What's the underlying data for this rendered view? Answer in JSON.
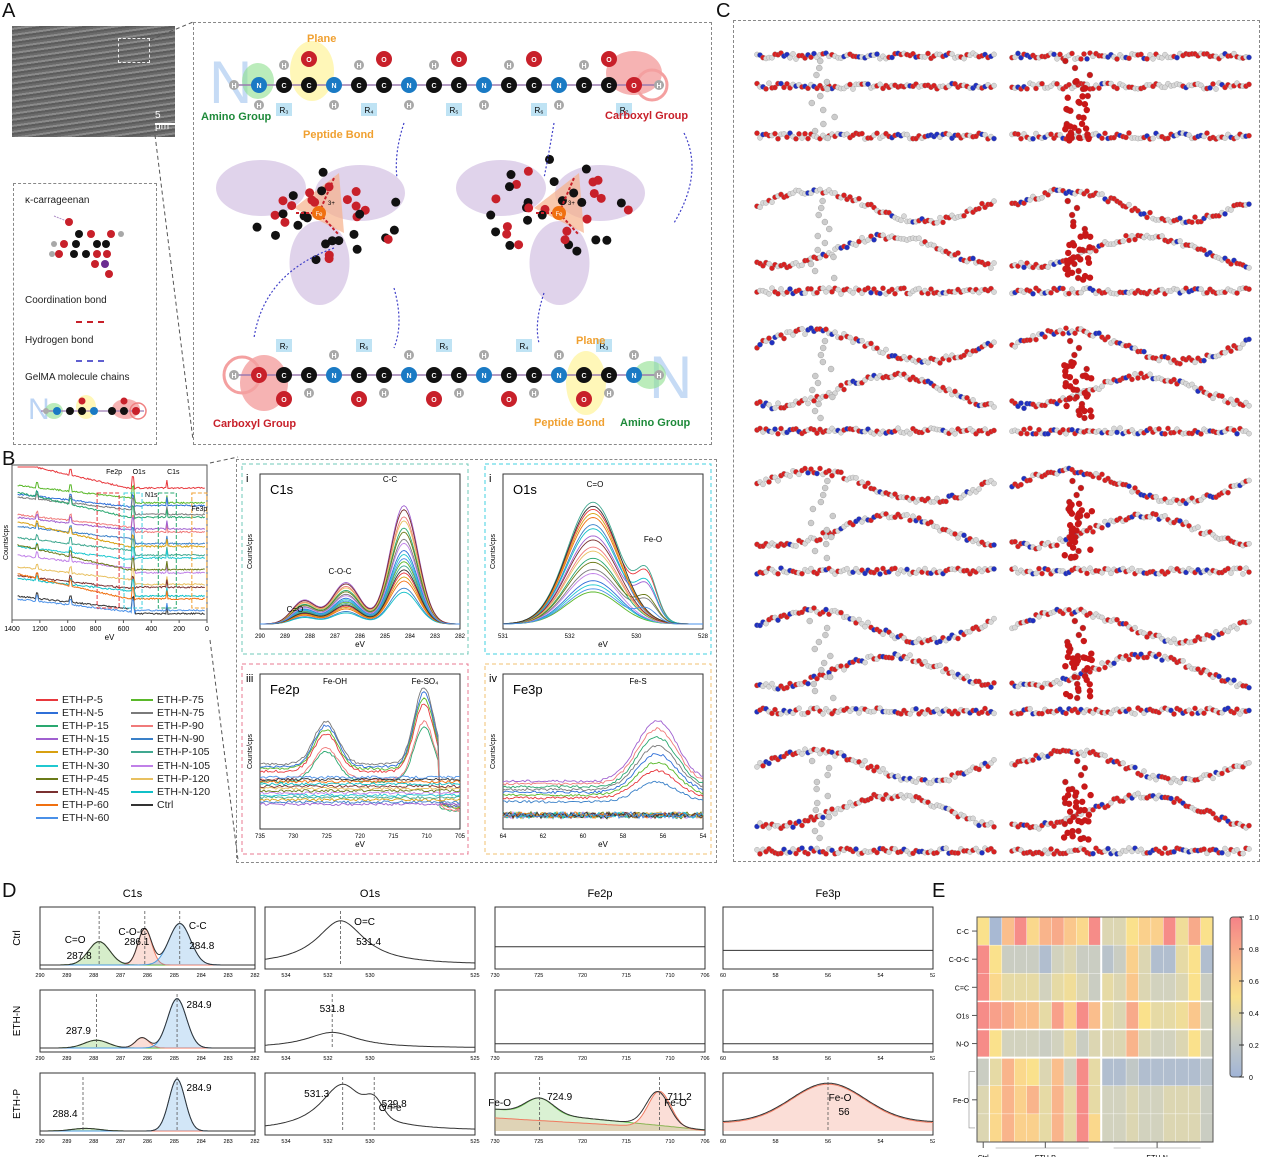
{
  "panel_labels": {
    "A": "A",
    "B": "B",
    "C": "C",
    "D": "D",
    "E": "E"
  },
  "panelA": {
    "sem_scale_bar": "5 μm",
    "legend": {
      "title": "κ-carrageenan",
      "coordination": "Coordination bond",
      "hydrogen": "Hydrogen bond",
      "gelma": "GelMA molecule chains"
    },
    "top_chain": {
      "labels": {
        "plane": "Plane",
        "peptide": "Peptide Bond",
        "amino": "Amino Group",
        "carboxyl": "Carboxyl Group"
      },
      "r_groups": [
        "R₃",
        "R₄",
        "R₅",
        "R₆",
        "R₇"
      ]
    },
    "bottom_chain": {
      "labels": {
        "plane": "Plane",
        "peptide": "Peptide Bond",
        "amino": "Amino Group",
        "carboxyl": "Carboxyl Group"
      },
      "r_groups": [
        "R₇",
        "R₆",
        "R₅",
        "R₄",
        "R₃"
      ]
    },
    "fe_label": "Fe",
    "fe_charge": "3+",
    "colors": {
      "carbon": "#111111",
      "oxygen": "#c8202a",
      "nitrogen": "#1a7ac4",
      "hydrogen": "#a8a8a8",
      "sulfur": "#6a2c91",
      "iron": "#f07010",
      "r_box": "#bfe3f4",
      "amino": "#1e8a3a",
      "peptide": "#f0a030",
      "carboxyl": "#c8202a"
    }
  },
  "panelB": {
    "survey": {
      "xlabel": "eV",
      "ylabel": "Counts/cps",
      "xticks": [
        "1400",
        "1200",
        "1000",
        "800",
        "600",
        "400",
        "200",
        "0"
      ],
      "region_labels": [
        "Fe2p",
        "O1s",
        "C1s",
        "N1s",
        "Fe3p"
      ]
    },
    "legend": [
      {
        "name": "ETH-P-5",
        "color": "#e8383d"
      },
      {
        "name": "ETH-P-75",
        "color": "#5ab82a"
      },
      {
        "name": "ETH-N-5",
        "color": "#2f6fd8"
      },
      {
        "name": "ETH-N-75",
        "color": "#7a7a7a"
      },
      {
        "name": "ETH-P-15",
        "color": "#2aa870"
      },
      {
        "name": "ETH-P-90",
        "color": "#f07a7a"
      },
      {
        "name": "ETH-N-15",
        "color": "#a060d0"
      },
      {
        "name": "ETH-N-90",
        "color": "#3a80c8"
      },
      {
        "name": "ETH-P-30",
        "color": "#d8a010"
      },
      {
        "name": "ETH-P-105",
        "color": "#40a890"
      },
      {
        "name": "ETH-N-30",
        "color": "#20c8d0"
      },
      {
        "name": "ETH-N-105",
        "color": "#c080e8"
      },
      {
        "name": "ETH-P-45",
        "color": "#6a7a18"
      },
      {
        "name": "ETH-P-120",
        "color": "#e8c060"
      },
      {
        "name": "ETH-N-45",
        "color": "#7a3030"
      },
      {
        "name": "ETH-N-120",
        "color": "#10c0c8"
      },
      {
        "name": "ETH-P-60",
        "color": "#f07010"
      },
      {
        "name": "Ctrl",
        "color": "#333333"
      },
      {
        "name": "ETH-N-60",
        "color": "#4a90e8"
      }
    ],
    "subpanels": [
      {
        "roman": "i",
        "title": "C1s",
        "xlabel": "eV",
        "ylabel": "Counts/cps",
        "xticks": [
          "290",
          "289",
          "288",
          "287",
          "286",
          "285",
          "284",
          "283",
          "282"
        ],
        "annotations": [
          "C-C",
          "C-O-C",
          "C=O"
        ],
        "border": "#6fc8b8"
      },
      {
        "roman": "i",
        "title": "O1s",
        "xlabel": "eV",
        "ylabel": "Counts/cps",
        "xticks": [
          "531",
          "532",
          "530",
          "528"
        ],
        "annotations": [
          "C=O",
          "Fe-O"
        ],
        "border": "#40d0e0"
      },
      {
        "roman": "iii",
        "title": "Fe2p",
        "xlabel": "eV",
        "ylabel": "Counts/cps",
        "xticks": [
          "735",
          "730",
          "725",
          "720",
          "715",
          "710",
          "705"
        ],
        "annotations": [
          "Fe-OH",
          "Fe-SO₄"
        ],
        "border": "#e87890"
      },
      {
        "roman": "iv",
        "title": "Fe3p",
        "xlabel": "eV",
        "ylabel": "Counts/cps",
        "xticks": [
          "64",
          "62",
          "60",
          "58",
          "56",
          "54"
        ],
        "annotations": [
          "Fe-S"
        ],
        "border": "#f0c070"
      }
    ]
  },
  "panelC": {
    "rows": 6,
    "cols": 2
  },
  "chart_data": [
    {
      "type": "line",
      "title": "C1s",
      "row": "Ctrl",
      "xlim": [
        290,
        282
      ],
      "xticks": [
        "290",
        "289",
        "288",
        "287",
        "286",
        "285",
        "284",
        "283",
        "282"
      ],
      "peaks": [
        {
          "label": "C=O",
          "value": "287.8"
        },
        {
          "label": "C-O-C",
          "value": "286.1"
        },
        {
          "label": "C-C",
          "value": "284.8"
        }
      ]
    },
    {
      "type": "line",
      "title": "C1s",
      "row": "ETH-N",
      "xlim": [
        290,
        282
      ],
      "xticks": [
        "290",
        "289",
        "288",
        "287",
        "286",
        "285",
        "284",
        "283",
        "282"
      ],
      "peaks": [
        {
          "label": "",
          "value": "287.9"
        },
        {
          "label": "",
          "value": "284.9"
        }
      ]
    },
    {
      "type": "line",
      "title": "C1s",
      "row": "ETH-P",
      "xlim": [
        290,
        282
      ],
      "xticks": [
        "290",
        "289",
        "288",
        "287",
        "286",
        "285",
        "284",
        "283",
        "282"
      ],
      "peaks": [
        {
          "label": "",
          "value": "288.4"
        },
        {
          "label": "",
          "value": "284.9"
        }
      ]
    },
    {
      "type": "line",
      "title": "O1s",
      "row": "Ctrl",
      "xlim": [
        535,
        525
      ],
      "xticks": [
        "534",
        "532",
        "530",
        "525"
      ],
      "peaks": [
        {
          "label": "O=C",
          "value": "531.4"
        }
      ]
    },
    {
      "type": "line",
      "title": "O1s",
      "row": "ETH-N",
      "xlim": [
        535,
        525
      ],
      "xticks": [
        "534",
        "532",
        "530",
        "525"
      ],
      "peaks": [
        {
          "label": "",
          "value": "531.8"
        }
      ]
    },
    {
      "type": "line",
      "title": "O1s",
      "row": "ETH-P",
      "xlim": [
        535,
        525
      ],
      "xticks": [
        "534",
        "532",
        "530",
        "525"
      ],
      "peaks": [
        {
          "label": "",
          "value": "531.3"
        },
        {
          "label": "O-Fe",
          "value": "529.8"
        }
      ]
    },
    {
      "type": "line",
      "title": "Fe2p",
      "row": "Ctrl",
      "xlim": [
        730,
        706
      ],
      "xticks": [
        "730",
        "725",
        "720",
        "715",
        "710",
        "706"
      ],
      "peaks": []
    },
    {
      "type": "line",
      "title": "Fe2p",
      "row": "ETH-N",
      "xlim": [
        730,
        706
      ],
      "xticks": [
        "730",
        "725",
        "720",
        "715",
        "710",
        "706"
      ],
      "peaks": []
    },
    {
      "type": "line",
      "title": "Fe2p",
      "row": "ETH-P",
      "xlim": [
        730,
        706
      ],
      "xticks": [
        "730",
        "725",
        "720",
        "715",
        "710",
        "706"
      ],
      "peaks": [
        {
          "label": "Fe-O",
          "value": "724.9"
        },
        {
          "label": "Fe-O",
          "value": "711.2"
        }
      ]
    },
    {
      "type": "line",
      "title": "Fe3p",
      "row": "Ctrl",
      "xlim": [
        60,
        52
      ],
      "xticks": [
        "60",
        "58",
        "56",
        "54",
        "52"
      ],
      "peaks": []
    },
    {
      "type": "line",
      "title": "Fe3p",
      "row": "ETH-N",
      "xlim": [
        60,
        52
      ],
      "xticks": [
        "60",
        "58",
        "56",
        "54",
        "52"
      ],
      "peaks": []
    },
    {
      "type": "line",
      "title": "Fe3p",
      "row": "ETH-P",
      "xlim": [
        60,
        52
      ],
      "xticks": [
        "60",
        "58",
        "56",
        "54",
        "52"
      ],
      "peaks": [
        {
          "label": "Fe-O",
          "value": "56"
        }
      ]
    },
    {
      "type": "heatmap",
      "rows": [
        "C-C",
        "C-O-C",
        "C=C",
        "O1s",
        "N-O",
        "",
        "Fe-O",
        ""
      ],
      "row_labels_shown": [
        "C-C",
        "C-O-C",
        "C=C",
        "O1s",
        "N-O",
        "Fe-O"
      ],
      "column_groups": [
        {
          "name": "Ctrl",
          "count": 1
        },
        {
          "name": "ETH-P",
          "count": 9
        },
        {
          "name": "ETH-N",
          "count": 9
        }
      ],
      "colorbar": {
        "min": 0,
        "max": 1,
        "ticks": [
          "0",
          "0.2",
          "0.4",
          "0.6",
          "0.8",
          "1.0"
        ]
      },
      "values": [
        [
          0.5,
          0.05,
          0.7,
          0.95,
          0.55,
          0.75,
          0.8,
          0.65,
          0.55,
          0.95,
          0.35,
          0.35,
          0.5,
          0.6,
          0.6,
          0.95,
          0.45,
          0.8,
          0.5
        ],
        [
          0.95,
          0.5,
          0.25,
          0.25,
          0.25,
          0.1,
          0.3,
          0.35,
          0.25,
          0.25,
          0.15,
          0.25,
          0.6,
          0.35,
          0.1,
          0.1,
          0.4,
          0.5,
          0.1
        ],
        [
          0.95,
          0.55,
          0.4,
          0.4,
          0.4,
          0.3,
          0.4,
          0.45,
          0.35,
          0.25,
          0.4,
          0.35,
          0.65,
          0.35,
          0.3,
          0.3,
          0.35,
          0.5,
          0.25
        ],
        [
          0.95,
          0.85,
          0.8,
          0.7,
          0.7,
          0.4,
          0.85,
          0.6,
          0.95,
          0.7,
          0.4,
          0.35,
          0.8,
          0.5,
          0.4,
          0.4,
          0.45,
          0.65,
          0.3
        ],
        [
          0.95,
          0.5,
          0.3,
          0.3,
          0.3,
          0.25,
          0.3,
          0.4,
          0.25,
          0.35,
          0.35,
          0.35,
          0.75,
          0.35,
          0.3,
          0.3,
          0.35,
          0.5,
          0.3
        ],
        [
          0.25,
          0.4,
          0.75,
          0.55,
          0.5,
          0.35,
          0.7,
          0.3,
          0.95,
          0.4,
          0.1,
          0.1,
          0.2,
          0.1,
          0.1,
          0.1,
          0.1,
          0.1,
          0.15
        ],
        [
          0.35,
          0.55,
          0.75,
          0.6,
          0.75,
          0.4,
          0.75,
          0.4,
          0.95,
          0.4,
          0.3,
          0.3,
          0.35,
          0.3,
          0.3,
          0.35,
          0.35,
          0.35,
          0.25
        ],
        [
          0.35,
          0.55,
          0.75,
          0.6,
          0.6,
          0.4,
          0.75,
          0.4,
          0.95,
          0.55,
          0.3,
          0.3,
          0.35,
          0.3,
          0.3,
          0.35,
          0.35,
          0.35,
          0.25
        ]
      ]
    }
  ],
  "panelD": {
    "columns": [
      "C1s",
      "O1s",
      "Fe2p",
      "Fe3p"
    ],
    "rows": [
      "Ctrl",
      "ETH-N",
      "ETH-P"
    ]
  }
}
